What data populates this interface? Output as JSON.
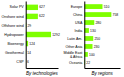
{
  "chart_data": [
    {
      "type": "bar",
      "orientation": "horizontal",
      "title": "By technologies",
      "categories": [
        "Solar PV",
        "Onshore wind",
        "Offshore wind",
        "Hydropower",
        "Bioenergy",
        "Geothermal",
        "CSP"
      ],
      "values": [
        627,
        622,
        29,
        1292,
        124,
        14,
        6
      ],
      "color": "#7FFF00",
      "xlim": [
        0,
        1647
      ],
      "data_labels": true,
      "tick_labels": "y"
    },
    {
      "type": "bar",
      "orientation": "horizontal",
      "title": "By regions",
      "categories": [
        "Europe",
        "China",
        "USA",
        "India",
        "Latin Am.",
        "Other Asia",
        "Middle East\n& Africa",
        "Oceania"
      ],
      "values": [
        510,
        758,
        280,
        130,
        250,
        230,
        100,
        22
      ],
      "color": "#7FFF00",
      "xlim": [
        0,
        1000
      ],
      "data_labels": true,
      "tick_labels": "y"
    }
  ]
}
